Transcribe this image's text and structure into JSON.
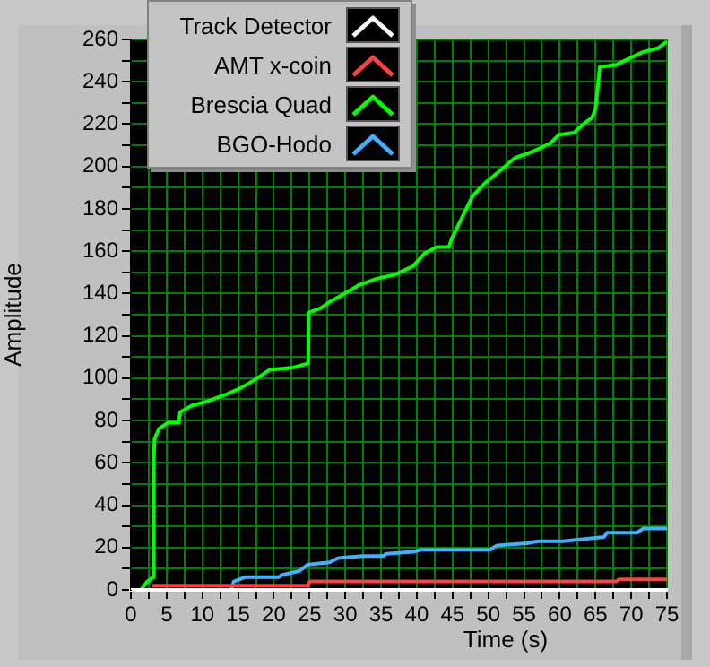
{
  "chart_data": {
    "type": "line",
    "xlabel": "Time (s)",
    "ylabel": "Amplitude",
    "xlim": [
      0,
      75
    ],
    "xticks": [
      0,
      {
        "value": 2.5,
        "label": null
      },
      5,
      {
        "value": 7.5,
        "label": null
      },
      10,
      {
        "value": 12.5,
        "label": null
      },
      15,
      {
        "value": 17.5,
        "label": null
      },
      20,
      {
        "value": 22.5,
        "label": null
      },
      25,
      {
        "value": 27.5,
        "label": null
      },
      30,
      {
        "value": 32.5,
        "label": null
      },
      35,
      {
        "value": 37.5,
        "label": null
      },
      40,
      {
        "value": 42.5,
        "label": null
      },
      45,
      {
        "value": 47.5,
        "label": null
      },
      50,
      {
        "value": 52.5,
        "label": null
      },
      55,
      {
        "value": 57.5,
        "label": null
      },
      60,
      {
        "value": 62.5,
        "label": null
      },
      65,
      {
        "value": 67.5,
        "label": null
      },
      70,
      {
        "value": 72.5,
        "label": null
      },
      75
    ],
    "ylim": [
      0,
      260
    ],
    "yticks": [
      0,
      {
        "value": 10,
        "label": null
      },
      20,
      {
        "value": 30,
        "label": null
      },
      40,
      {
        "value": 50,
        "label": null
      },
      60,
      {
        "value": 70,
        "label": null
      },
      80,
      {
        "value": 90,
        "label": null
      },
      100,
      {
        "value": 110,
        "label": null
      },
      120,
      {
        "value": 130,
        "label": null
      },
      140,
      {
        "value": 150,
        "label": null
      },
      160,
      {
        "value": 170,
        "label": null
      },
      180,
      {
        "value": 190,
        "label": null
      },
      200,
      {
        "value": 210,
        "label": null
      },
      220,
      {
        "value": 230,
        "label": null
      },
      240,
      {
        "value": 250,
        "label": null
      },
      260
    ],
    "grid": true,
    "legend": "top left",
    "marker": "none",
    "line_style": "solid",
    "series": [
      {
        "name": "Track Detector",
        "color": "#ffffff",
        "x": [
          0,
          75
        ],
        "values": [
          0,
          0
        ]
      },
      {
        "name": "AMT x-coin",
        "color": "#ff4040",
        "x": [
          3,
          24.8,
          25,
          67.9,
          68.3,
          75
        ],
        "values": [
          2,
          2,
          4,
          4,
          5,
          5
        ]
      },
      {
        "name": "Brescia Quad",
        "color": "#00ff00",
        "x": [
          1.4,
          2.3,
          3.1,
          3.2,
          3.3,
          3.9,
          5.2,
          6.7,
          6.9,
          8.5,
          10.6,
          13.1,
          15.2,
          17.7,
          19.4,
          22.7,
          24.8,
          24.9,
          26.5,
          27.8,
          29.4,
          31.9,
          34.4,
          37,
          39.5,
          41.1,
          42.8,
          44.5,
          44.9,
          46.2,
          47.8,
          49.5,
          52,
          53.7,
          56.2,
          58.7,
          59.9,
          62,
          63.3,
          64.5,
          65,
          65.6,
          67.9,
          69.1,
          71.6,
          73.8,
          75
        ],
        "values": [
          0,
          4,
          6,
          60,
          71,
          76,
          79,
          79,
          84,
          87,
          89,
          92,
          95,
          100,
          104,
          105,
          107,
          131,
          133,
          136,
          139,
          144,
          147,
          149,
          153,
          159,
          162,
          162,
          166,
          175,
          186,
          192,
          199,
          204,
          207,
          211,
          215,
          216,
          220,
          223,
          227,
          247,
          248,
          250,
          254,
          256,
          259
        ]
      },
      {
        "name": "BGO-Hodo",
        "color": "#40b0ff",
        "x": [
          0,
          14,
          14.4,
          16,
          20.7,
          21.1,
          23.6,
          24.8,
          27.8,
          29,
          32.4,
          35.3,
          35.7,
          39.5,
          40.7,
          50.3,
          51.2,
          55.4,
          57,
          60.4,
          66.2,
          66.6,
          70.8,
          71.7,
          75
        ],
        "values": [
          0,
          0,
          4,
          6,
          6,
          7,
          9,
          12,
          13,
          15,
          16,
          16,
          17,
          18,
          19,
          19,
          21,
          22,
          23,
          23,
          25,
          27,
          27,
          29,
          29
        ]
      }
    ]
  }
}
